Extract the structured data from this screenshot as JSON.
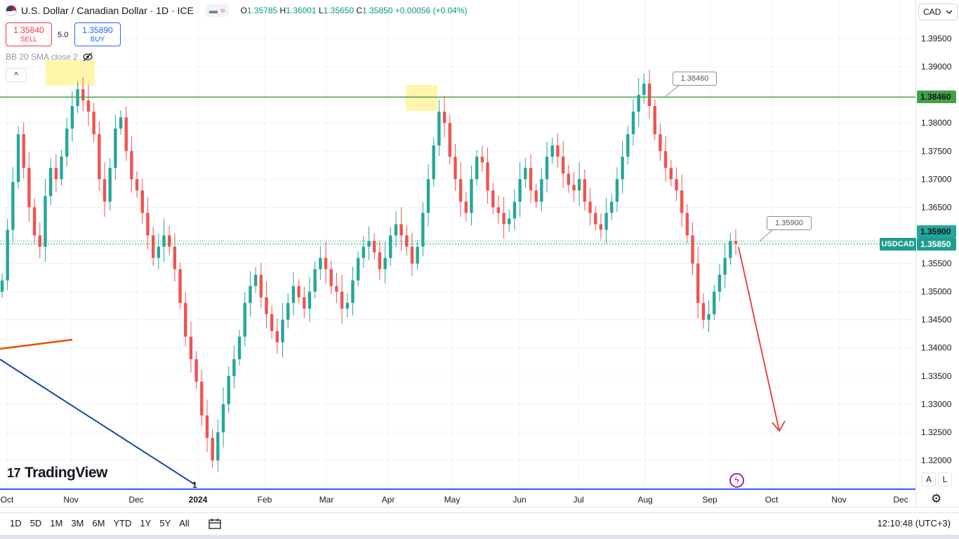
{
  "header": {
    "symbol_title": "U.S. Dollar / Canadian Dollar · 1D · ICE",
    "pill_dash": "▬",
    "pill_wave": "≈",
    "ohlc": {
      "open_label": "O",
      "open": "1.35785",
      "high_label": "H",
      "high": "1.36001",
      "low_label": "L",
      "low": "1.35650",
      "close_label": "C",
      "close": "1.35850",
      "change": "+0.00056 (+0.04%)"
    },
    "sell_price": "1.35840",
    "sell_label": "SELL",
    "buy_price": "1.35890",
    "buy_label": "BUY",
    "spread": "5.0",
    "indicator_label": "BB 20 SMA close 2",
    "indicator_visibility_icon": "eye-off-icon",
    "collapse_icon": "^"
  },
  "currency_selector": {
    "label": "CAD",
    "icon": "chevron-down-icon"
  },
  "price_tags": {
    "resistance": "1.38460",
    "support": "1.35900",
    "last": "1.35850",
    "symbol_label": "USDCAD"
  },
  "callouts": {
    "upper": "1.38460",
    "lower": "1.35900"
  },
  "brand": {
    "mark": "17",
    "name": "TradingView"
  },
  "ranges": [
    "1D",
    "5D",
    "1M",
    "3M",
    "6M",
    "YTD",
    "1Y",
    "5Y",
    "All"
  ],
  "clock": "12:10:48 (UTC+3)",
  "scale_buttons": [
    "A",
    "L"
  ],
  "wave_label": "1",
  "colors": {
    "up": "#26a69a",
    "down": "#ef5350",
    "resistance_line": "#43a047",
    "highlight": "#fff59d",
    "forecast_arrow": "#e53935",
    "trend_orange": "#e65100",
    "trend_blue": "#1a47a8"
  },
  "chart_data": {
    "type": "candlestick",
    "title": "U.S. Dollar / Canadian Dollar · 1D · ICE",
    "xlabel": "",
    "ylabel": "",
    "ylim": [
      1.316,
      1.3995
    ],
    "y_ticks": [
      "1.39500",
      "1.39000",
      "1.38000",
      "1.37500",
      "1.37000",
      "1.36500",
      "1.35500",
      "1.35000",
      "1.34500",
      "1.34000",
      "1.33500",
      "1.33000",
      "1.32500",
      "1.32000"
    ],
    "x_ticks": [
      "Oct",
      "Nov",
      "Dec",
      "2024",
      "Feb",
      "Mar",
      "Apr",
      "May",
      "Jun",
      "Jul",
      "Aug",
      "Sep",
      "Oct",
      "Nov",
      "Dec"
    ],
    "horizontal_levels": [
      {
        "value": 1.3846,
        "style": "solid"
      },
      {
        "value": 1.3585,
        "style": "dotted"
      }
    ],
    "forecast": {
      "direction": "down",
      "target": 1.325
    },
    "close_series": [
      1.352,
      1.361,
      1.3695,
      1.378,
      1.372,
      1.365,
      1.36,
      1.358,
      1.367,
      1.372,
      1.37,
      1.374,
      1.379,
      1.383,
      1.386,
      1.384,
      1.382,
      1.378,
      1.37,
      1.366,
      1.372,
      1.379,
      1.381,
      1.375,
      1.37,
      1.368,
      1.364,
      1.36,
      1.356,
      1.358,
      1.36,
      1.358,
      1.354,
      1.348,
      1.342,
      1.338,
      1.334,
      1.328,
      1.324,
      1.32,
      1.325,
      1.33,
      1.335,
      1.338,
      1.342,
      1.348,
      1.351,
      1.353,
      1.349,
      1.346,
      1.343,
      1.341,
      1.345,
      1.348,
      1.351,
      1.349,
      1.347,
      1.35,
      1.354,
      1.356,
      1.354,
      1.351,
      1.35,
      1.347,
      1.348,
      1.352,
      1.356,
      1.358,
      1.359,
      1.357,
      1.354,
      1.356,
      1.36,
      1.362,
      1.36,
      1.358,
      1.355,
      1.358,
      1.364,
      1.37,
      1.376,
      1.382,
      1.38,
      1.374,
      1.37,
      1.366,
      1.364,
      1.37,
      1.374,
      1.373,
      1.368,
      1.365,
      1.364,
      1.362,
      1.363,
      1.366,
      1.37,
      1.372,
      1.368,
      1.366,
      1.37,
      1.374,
      1.376,
      1.374,
      1.371,
      1.369,
      1.368,
      1.37,
      1.366,
      1.364,
      1.362,
      1.361,
      1.364,
      1.366,
      1.37,
      1.374,
      1.378,
      1.382,
      1.385,
      1.387,
      1.383,
      1.378,
      1.375,
      1.372,
      1.37,
      1.368,
      1.364,
      1.36,
      1.355,
      1.348,
      1.345,
      1.346,
      1.35,
      1.353,
      1.356,
      1.359,
      1.3585
    ]
  }
}
